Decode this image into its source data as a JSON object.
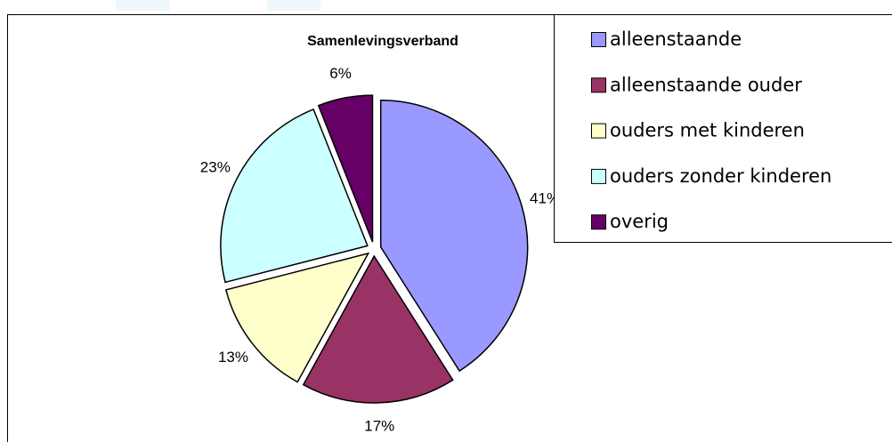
{
  "chart_data": {
    "type": "pie",
    "title": "Samenlevingsverband",
    "categories": [
      "alleenstaande",
      "alleenstaande ouder",
      "ouders met kinderen",
      "ouders zonder kinderen",
      "overig"
    ],
    "values": [
      41,
      17,
      13,
      23,
      6
    ],
    "value_labels": [
      "41%",
      "17%",
      "13%",
      "23%",
      "6%"
    ],
    "colors": [
      "#9999ff",
      "#993366",
      "#ffffcc",
      "#ccffff",
      "#660066"
    ]
  }
}
